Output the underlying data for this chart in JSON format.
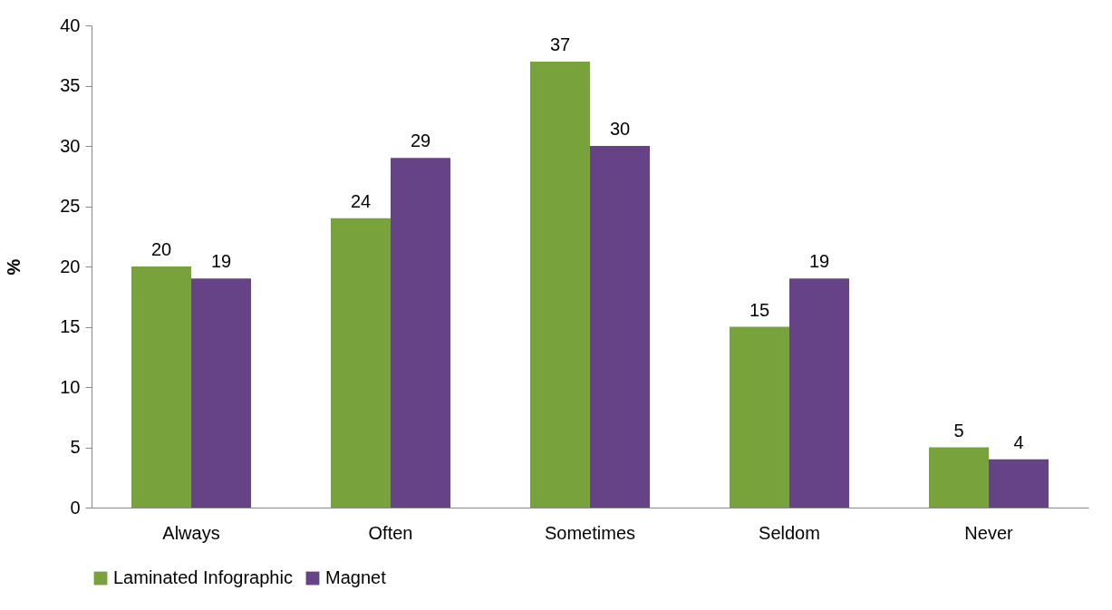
{
  "chart_data": {
    "type": "bar",
    "ylabel": "%",
    "categories": [
      "Always",
      "Often",
      "Sometimes",
      "Seldom",
      "Never"
    ],
    "series": [
      {
        "name": "Laminated Infographic",
        "color": "#77a23c",
        "values": [
          20,
          24,
          37,
          15,
          5
        ]
      },
      {
        "name": "Magnet",
        "color": "#664387",
        "values": [
          19,
          29,
          30,
          19,
          4
        ]
      }
    ],
    "ylim": [
      0,
      40
    ],
    "yticks": [
      0,
      5,
      10,
      15,
      20,
      25,
      30,
      35,
      40
    ],
    "grid": false,
    "legend": "bottom",
    "data_labels": true
  }
}
